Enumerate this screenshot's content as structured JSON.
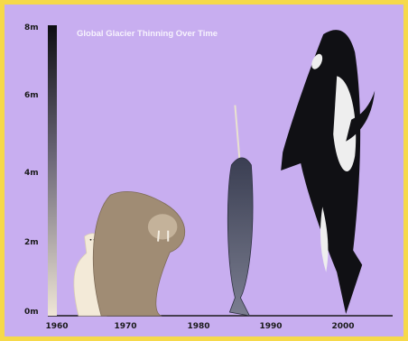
{
  "chart_data": {
    "type": "bar",
    "title": "Global Glacier Thinning Over Time",
    "xlabel": "",
    "ylabel": "",
    "y_ticks": [
      "0m",
      "2m",
      "4m",
      "6m",
      "8m"
    ],
    "x_ticks": [
      "1960",
      "1970",
      "1980",
      "1990",
      "2000"
    ],
    "ylim": [
      0,
      8
    ],
    "xlim": [
      1960,
      2005
    ],
    "background": "#c8aef0",
    "frame_color": "#f6d94a",
    "series": [
      {
        "x": [
          1961,
          1965,
          1972,
          1986,
          1998
        ],
        "values": [
          8,
          2.3,
          3.5,
          5.8,
          8.0
        ],
        "marks": [
          "gradient-bar",
          "polar-bear",
          "walrus",
          "narwhal",
          "orca"
        ]
      }
    ],
    "colors": {
      "bar_top": "#0d0d12",
      "bar_bottom": "#efe6d6",
      "polar_bear": "#f3ead8",
      "walrus": "#a08c74",
      "narwhal": "#4b4f63",
      "orca": "#101014"
    }
  }
}
